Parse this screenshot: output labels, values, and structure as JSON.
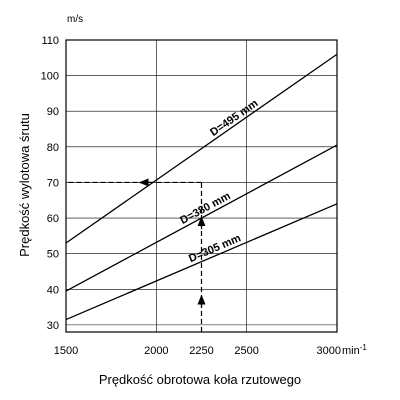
{
  "chart_data": {
    "type": "line",
    "title": "",
    "xlabel": "Prędkość obrotowa koła rzutowego",
    "ylabel": "Prędkość wylotowa śrutu",
    "y_unit": "m/s",
    "x_unit": "min",
    "x_unit_exp": "-1",
    "xlim": [
      1500,
      3000
    ],
    "ylim": [
      28,
      110
    ],
    "x_ticks": [
      1500,
      2000,
      2250,
      2500,
      3000
    ],
    "x_tick_labels": [
      "1500",
      "2000",
      "2250",
      "2500",
      "3000"
    ],
    "y_ticks": [
      30,
      40,
      50,
      60,
      70,
      80,
      90,
      100,
      110
    ],
    "y_tick_labels": [
      "30",
      "40",
      "50",
      "60",
      "70",
      "80",
      "90",
      "100",
      "110"
    ],
    "grid": true,
    "series": [
      {
        "name": "D=495 mm",
        "x": [
          1500,
          3000
        ],
        "y": [
          53,
          106
        ]
      },
      {
        "name": "D=380 mm",
        "x": [
          1500,
          3000
        ],
        "y": [
          39.5,
          80.5
        ]
      },
      {
        "name": "D=305 mm",
        "x": [
          1500,
          3000
        ],
        "y": [
          31.5,
          64
        ]
      }
    ],
    "annotation": {
      "style": "dashed",
      "path": [
        [
          2250,
          28
        ],
        [
          2250,
          70
        ],
        [
          1500,
          70
        ]
      ]
    }
  }
}
